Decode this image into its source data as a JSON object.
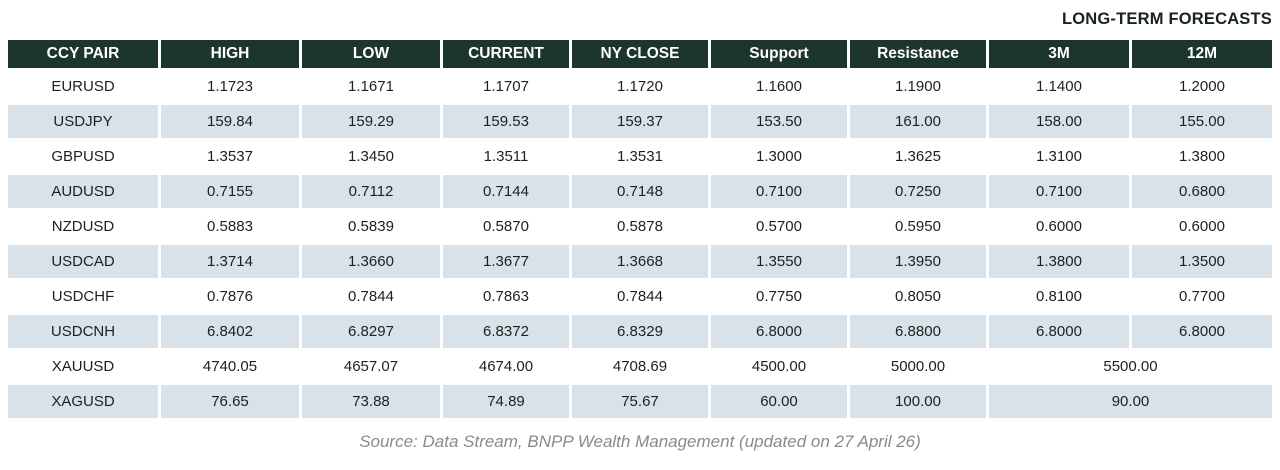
{
  "header_label": "LONG-TERM FORECASTS",
  "table": {
    "columns": [
      "CCY PAIR",
      "HIGH",
      "LOW",
      "CURRENT",
      "NY CLOSE",
      "Support",
      "Resistance",
      "3M",
      "12M"
    ],
    "rows": [
      {
        "pair": "EURUSD",
        "values": [
          "1.1723",
          "1.1671",
          "1.1707",
          "1.1720",
          "1.1600",
          "1.1900",
          "1.1400",
          "1.2000"
        ]
      },
      {
        "pair": "USDJPY",
        "values": [
          "159.84",
          "159.29",
          "159.53",
          "159.37",
          "153.50",
          "161.00",
          "158.00",
          "155.00"
        ]
      },
      {
        "pair": "GBPUSD",
        "values": [
          "1.3537",
          "1.3450",
          "1.3511",
          "1.3531",
          "1.3000",
          "1.3625",
          "1.3100",
          "1.3800"
        ]
      },
      {
        "pair": "AUDUSD",
        "values": [
          "0.7155",
          "0.7112",
          "0.7144",
          "0.7148",
          "0.7100",
          "0.7250",
          "0.7100",
          "0.6800"
        ]
      },
      {
        "pair": "NZDUSD",
        "values": [
          "0.5883",
          "0.5839",
          "0.5870",
          "0.5878",
          "0.5700",
          "0.5950",
          "0.6000",
          "0.6000"
        ]
      },
      {
        "pair": "USDCAD",
        "values": [
          "1.3714",
          "1.3660",
          "1.3677",
          "1.3668",
          "1.3550",
          "1.3950",
          "1.3800",
          "1.3500"
        ]
      },
      {
        "pair": "USDCHF",
        "values": [
          "0.7876",
          "0.7844",
          "0.7863",
          "0.7844",
          "0.7750",
          "0.8050",
          "0.8100",
          "0.7700"
        ]
      },
      {
        "pair": "USDCNH",
        "values": [
          "6.8402",
          "6.8297",
          "6.8372",
          "6.8329",
          "6.8000",
          "6.8800",
          "6.8000",
          "6.8000"
        ]
      },
      {
        "pair": "XAUUSD",
        "values": [
          "4740.05",
          "4657.07",
          "4674.00",
          "4708.69",
          "4500.00",
          "5000.00"
        ],
        "forecast_merged": "5500.00"
      },
      {
        "pair": "XAGUSD",
        "values": [
          "76.65",
          "73.88",
          "74.89",
          "75.67",
          "60.00",
          "100.00"
        ],
        "forecast_merged": "90.00"
      }
    ]
  },
  "source_note": "Source: Data Stream, BNPP Wealth Management (updated on 27 April 26)",
  "colors": {
    "header_bg": "#1d352f",
    "row_alt_bg": "#d9e2e8",
    "body_text": "#1f1f1f",
    "header_text": "#ffffff",
    "label_text": "#16231e",
    "source_text": "#8a8a8a"
  }
}
